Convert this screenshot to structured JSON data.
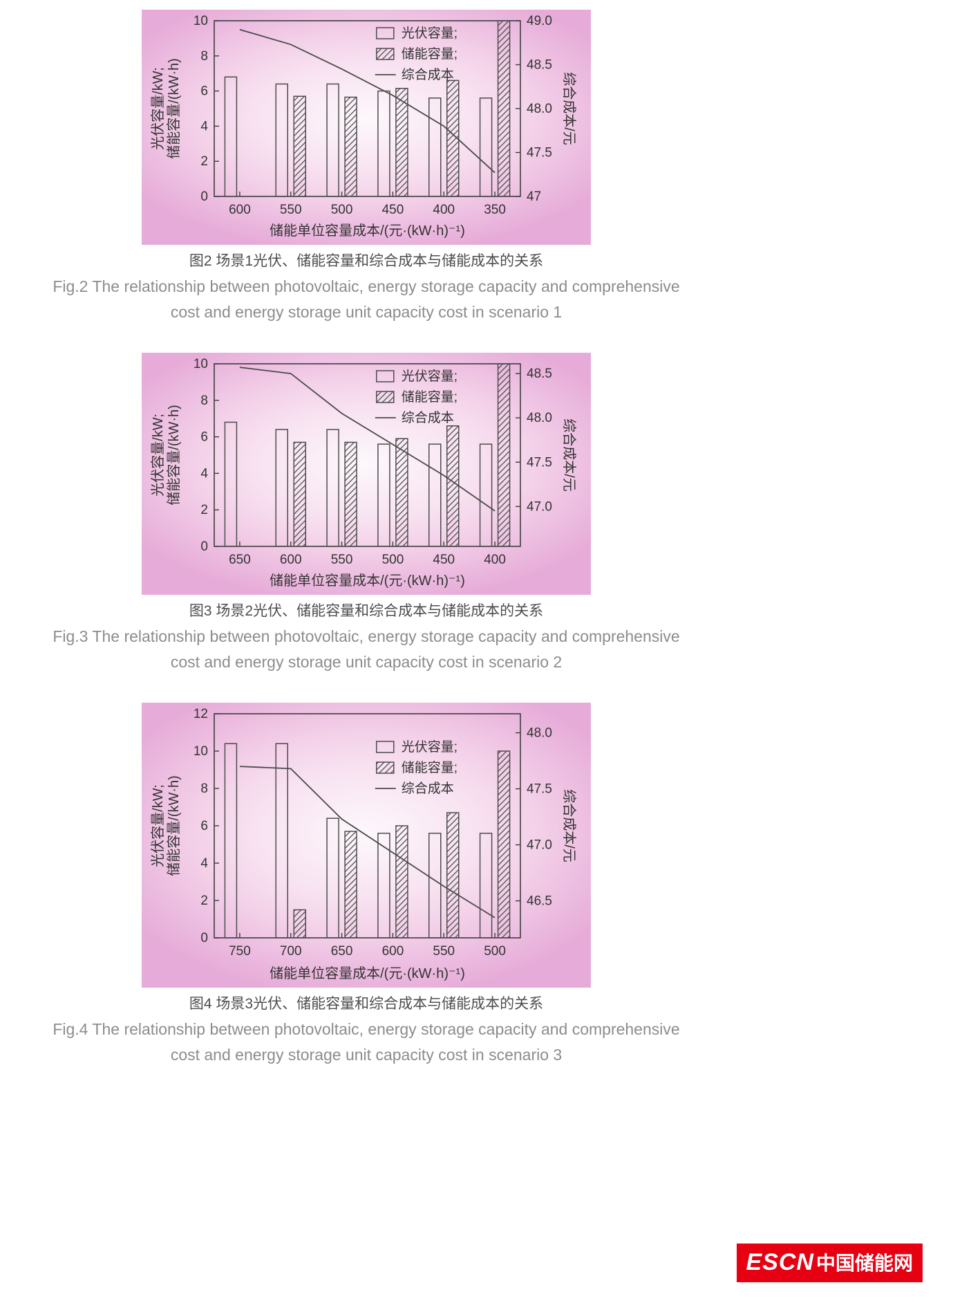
{
  "figures": [
    {
      "caption_zh": "图2  场景1光伏、储能容量和综合成本与储能成本的关系",
      "caption_en_line1": "Fig.2  The relationship between photovoltaic, energy storage capacity and comprehensive",
      "caption_en_line2": "cost and energy storage unit capacity cost in scenario 1"
    },
    {
      "caption_zh": "图3  场景2光伏、储能容量和综合成本与储能成本的关系",
      "caption_en_line1": "Fig.3  The relationship between photovoltaic, energy storage capacity and comprehensive",
      "caption_en_line2": "cost and energy storage unit capacity cost in scenario 2"
    },
    {
      "caption_zh": "图4  场景3光伏、储能容量和综合成本与储能成本的关系",
      "caption_en_line1": "Fig.4  The relationship between photovoltaic, energy storage capacity and comprehensive",
      "caption_en_line2": "cost and energy storage unit capacity cost in scenario 3"
    }
  ],
  "chart_data": [
    {
      "type": "bar",
      "categories": [
        "600",
        "550",
        "500",
        "450",
        "400",
        "350"
      ],
      "series": [
        {
          "name": "光伏容量",
          "type": "bar",
          "style": "plain",
          "axis": "left",
          "values": [
            6.8,
            6.4,
            6.4,
            6.0,
            5.6,
            5.6
          ]
        },
        {
          "name": "储能容量",
          "type": "bar",
          "style": "hatched",
          "axis": "left",
          "values": [
            null,
            5.7,
            5.65,
            6.15,
            6.6,
            10.0
          ]
        },
        {
          "name": "综合成本",
          "type": "line",
          "axis": "right",
          "values": [
            48.9,
            48.73,
            48.45,
            48.15,
            47.8,
            47.27
          ]
        }
      ],
      "legend": [
        "光伏容量;",
        "储能容量;",
        "综合成本"
      ],
      "legend_position": "upper-center-right",
      "xlabel": "储能单位容量成本/(元·(kW·h)⁻¹)",
      "ylabel_left": [
        "光伏容量/kW;",
        "储能容量/(kW·h)"
      ],
      "ylabel_right": "综合成本/元",
      "left_axis": {
        "min": 0,
        "max": 10,
        "ticks": [
          0,
          2,
          4,
          6,
          8,
          10
        ]
      },
      "right_axis": {
        "min": 47.0,
        "max": 49.0,
        "tick_values": [
          47.0,
          47.5,
          48.0,
          48.5,
          49.0
        ],
        "tick_labels": [
          "47",
          "47.5",
          "48.0",
          "48.5",
          "49.0"
        ]
      },
      "grid": false
    },
    {
      "type": "bar",
      "categories": [
        "650",
        "600",
        "550",
        "500",
        "450",
        "400"
      ],
      "series": [
        {
          "name": "光伏容量",
          "type": "bar",
          "style": "plain",
          "axis": "left",
          "values": [
            6.8,
            6.4,
            6.4,
            5.6,
            5.6,
            5.6
          ]
        },
        {
          "name": "储能容量",
          "type": "bar",
          "style": "hatched",
          "axis": "left",
          "values": [
            null,
            5.7,
            5.7,
            5.9,
            6.6,
            10.0
          ]
        },
        {
          "name": "综合成本",
          "type": "line",
          "axis": "right",
          "values": [
            48.57,
            48.5,
            48.05,
            47.7,
            47.35,
            46.95
          ]
        }
      ],
      "legend": [
        "光伏容量;",
        "储能容量;",
        "综合成本"
      ],
      "legend_position": "upper-center-right",
      "xlabel": "储能单位容量成本/(元·(kW·h)⁻¹)",
      "ylabel_left": [
        "光伏容量/kW;",
        "储能容量/(kW·h)"
      ],
      "ylabel_right": "综合成本/元",
      "left_axis": {
        "min": 0,
        "max": 10,
        "ticks": [
          0,
          2,
          4,
          6,
          8,
          10
        ]
      },
      "right_axis": {
        "min": 46.55,
        "max": 48.61,
        "tick_values": [
          47.0,
          47.5,
          48.0,
          48.5
        ],
        "tick_labels": [
          "47.0",
          "47.5",
          "48.0",
          "48.5"
        ]
      },
      "grid": false
    },
    {
      "type": "bar",
      "categories": [
        "750",
        "700",
        "650",
        "600",
        "550",
        "500"
      ],
      "series": [
        {
          "name": "光伏容量",
          "type": "bar",
          "style": "plain",
          "axis": "left",
          "values": [
            10.4,
            10.4,
            6.4,
            5.6,
            5.6,
            5.6
          ]
        },
        {
          "name": "储能容量",
          "type": "bar",
          "style": "hatched",
          "axis": "left",
          "values": [
            null,
            1.5,
            5.7,
            6.0,
            6.7,
            10.0
          ]
        },
        {
          "name": "综合成本",
          "type": "line",
          "axis": "right",
          "values": [
            47.7,
            47.68,
            47.23,
            46.93,
            46.63,
            46.35
          ]
        }
      ],
      "legend": [
        "光伏容量;",
        "储能容量;",
        "综合成本"
      ],
      "legend_position": "upper-center-right",
      "xlabel": "储能单位容量成本/(元·(kW·h)⁻¹)",
      "ylabel_left": [
        "光伏容量/kW;",
        "储能容量/(kW·h)"
      ],
      "ylabel_right": "综合成本/元",
      "left_axis": {
        "min": 0,
        "max": 12,
        "ticks": [
          0,
          2,
          4,
          6,
          8,
          10,
          12
        ]
      },
      "right_axis": {
        "min": 46.17,
        "max": 48.17,
        "tick_values": [
          46.5,
          47.0,
          47.5,
          48.0
        ],
        "tick_labels": [
          "46.5",
          "47.0",
          "47.5",
          "48.0"
        ]
      },
      "grid": false
    }
  ],
  "colors": {
    "axis": "#3d3d3d",
    "bar_outline": "#4c4c4c",
    "cost_line": "#4a4a4a",
    "panel_pink": "#e6abd8",
    "logo_red": "#e60012"
  },
  "logo": {
    "brand": "ESCN",
    "name": "中国储能网"
  }
}
